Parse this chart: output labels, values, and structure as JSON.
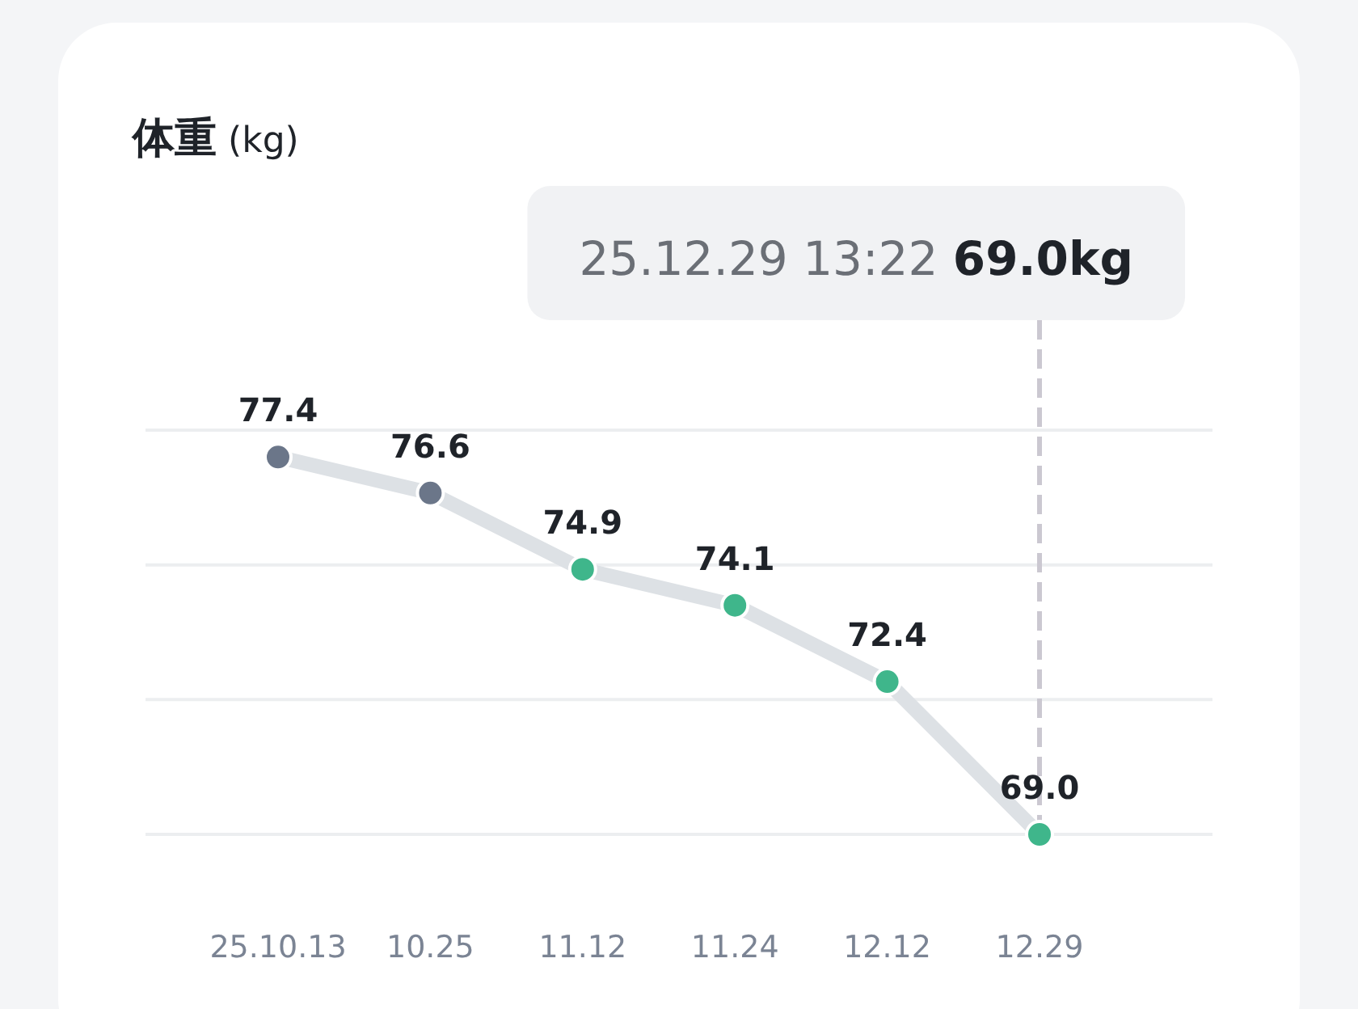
{
  "chart_data": {
    "type": "line",
    "title": "**体重** (kg)",
    "categories": [
      "25.10.13",
      "10.25",
      "11.12",
      "11.24",
      "12.12",
      "12.29"
    ],
    "values": [
      77.4,
      76.6,
      74.9,
      74.1,
      72.4,
      69.0
    ],
    "color": "#dde1e5",
    "colors": [
      "#6b7689",
      "#6b7689",
      "#3fb68b",
      "#3fb68b",
      "#3fb68b",
      "#3fb68b"
    ],
    "ylim": [
      69,
      78
    ],
    "yticks": [
      {
        "value": 69,
        "label": null
      },
      {
        "value": 72,
        "label": null
      },
      {
        "value": 75,
        "label": null
      },
      {
        "value": 78,
        "label": null
      }
    ],
    "value_labels": [
      "77.4",
      "76.6",
      "74.9",
      "74.1",
      "72.4",
      "69.0"
    ],
    "grid": "y",
    "tick_labels": "x",
    "marker": "circle",
    "line_style": "solid",
    "annotations": [
      {
        "text": "25.12.29 13:22 **69.0kg**",
        "x": "12.29",
        "y": 69.0
      }
    ]
  }
}
